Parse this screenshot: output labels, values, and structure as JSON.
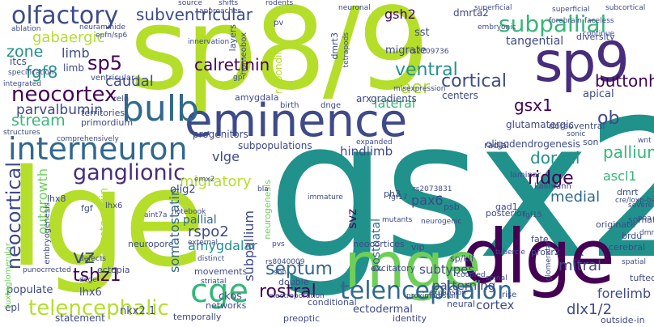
{
  "palette": {
    "lime": "#b5de2b",
    "light_green": "#6ece58",
    "green": "#35b779",
    "teal": "#21918c",
    "steel_blue": "#31688e",
    "indigo": "#3e4a89",
    "purple": "#472d7b",
    "dark_purple": "#440154",
    "pale_teal": "#2a9e8e",
    "light_lime": "#d0e11c"
  },
  "words": [
    "gsx2",
    "lge",
    "sp8/9",
    "dlge",
    "mge",
    "eminence",
    "sp9",
    "interneuron",
    "bulb",
    "ganglionic",
    "cge",
    "telencephalon",
    "telencephalic",
    "olfactory",
    "subventricular",
    "subpallial",
    "gaba",
    "gabaergic",
    "zone",
    "sp5",
    "fgf8",
    "neocortex",
    "stream",
    "calretinin",
    "vz",
    "tshz1",
    "septum",
    "rostral",
    "amygdalar",
    "cortical",
    "ridge",
    "buttonhead",
    "ob",
    "gsx1",
    "aer",
    "ventral",
    "lateral",
    "projection",
    "pallium",
    "ascl1",
    "medial",
    "dorsal",
    "mitral",
    "dlx1/2",
    "cortex",
    "forelimb",
    "neocortical",
    "outgrowth",
    "secretagogin",
    "parvalbumin",
    "caudal",
    "limb",
    "somatostatin",
    "migratory",
    "rspo2",
    "pallial",
    "subpallium",
    "svz",
    "postnatal",
    "pax6",
    "patterning",
    "subtypes",
    "ectodermal",
    "hindlimb",
    "subpopulations",
    "vlge",
    "olig2",
    "lhx6",
    "ckos",
    "populate",
    "epl",
    "statement",
    "tangential",
    "migrate",
    "sst",
    "gsh2",
    "dmrta2",
    "apical",
    "glutamatergic",
    "dorsoventral",
    "diversity",
    "progenitors",
    "neurogenesis",
    "amygdala",
    "arx",
    "gradients",
    "centers",
    "layers",
    "homeobox",
    "reln",
    "territories",
    "primordium",
    "neuropore",
    "ectopia",
    "preoptic",
    "identity",
    "outside-in",
    "brdu",
    "originate",
    "fate",
    "prokr2",
    "gad1",
    "vip",
    "somatostatin",
    "excitatory",
    "neocortices",
    "expansion",
    "oligodendrogenesis",
    "subcortical",
    "cerebral",
    "son",
    "dmrt",
    "tufted",
    "rs8040009",
    "shh",
    "psb",
    "ph3",
    "neuronal",
    "embryonic",
    "superficial",
    "faceless",
    "forebrain",
    "continue",
    "itcs",
    "limb",
    "spatial",
    "juxtaglomerular",
    "embryogenesis",
    "lhx8",
    "nkx2.1",
    "conditional",
    "double",
    "posterior",
    "radial",
    "laminar",
    "kallmann",
    "misexpression",
    "rs2709736",
    "rs2073831",
    "r-spondin",
    "mutants",
    "fgf17",
    "fgf15",
    "poa",
    "wnt",
    "emx2",
    "fgf",
    "shifts",
    "rodents",
    "source",
    "approaches",
    "neuraminide",
    "epfn/sp6",
    "ablation",
    "dmrt3",
    "tetrapods",
    "innervation",
    "pv",
    "ventricular",
    "specification",
    "integrated",
    "structures",
    "comprehensively",
    "immature",
    "expanded",
    "networks",
    "movements",
    "electroporation",
    "neural",
    "rise",
    "spinal",
    "sp/klf",
    "tubercle",
    "glomerular",
    "severe",
    "cre/loxp-based",
    "sonic",
    "notebook",
    "birth",
    "dnge",
    "dmrt",
    "gpr",
    "bla",
    "pvs",
    "distinct",
    "striatal",
    "external",
    "temporally",
    "defects",
    "aint7a",
    "superficial",
    "punocrrected",
    "dcge",
    "proximodistal",
    "neurogenic",
    "coupled",
    "lhx6"
  ]
}
